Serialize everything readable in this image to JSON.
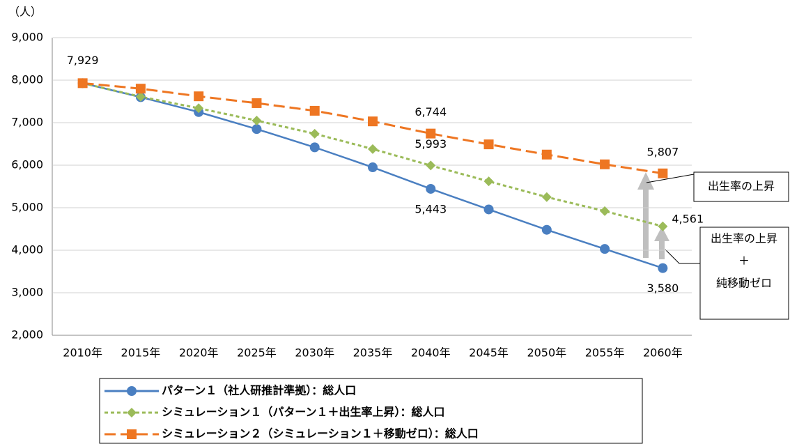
{
  "chart_data": {
    "type": "line",
    "y_unit_label": "（人）",
    "categories": [
      "2010年",
      "2015年",
      "2020年",
      "2025年",
      "2030年",
      "2035年",
      "2040年",
      "2045年",
      "2050年",
      "2055年",
      "2060年"
    ],
    "series": [
      {
        "name": "パターン１（社人研推計準拠）：総人口",
        "color": "#4a7fc1",
        "marker": "circle",
        "dash": "solid",
        "values": [
          7929,
          7600,
          7250,
          6850,
          6420,
          5950,
          5443,
          4960,
          4480,
          4030,
          3580
        ],
        "value_labels": [
          null,
          null,
          null,
          null,
          null,
          null,
          "5,443",
          null,
          null,
          null,
          "3,580"
        ]
      },
      {
        "name": "シミュレーション１（パターン１＋出生率上昇）：総人口",
        "color": "#9bbb59",
        "marker": "diamond",
        "dash": "short",
        "values": [
          7929,
          7610,
          7340,
          7050,
          6740,
          6380,
          5993,
          5620,
          5250,
          4920,
          4561
        ],
        "value_labels": [
          null,
          null,
          null,
          null,
          null,
          null,
          "5,993",
          null,
          null,
          null,
          "4,561"
        ]
      },
      {
        "name": "シミュレーション２（シミュレーション１＋移動ゼロ）：総人口",
        "color": "#ee7622",
        "marker": "square",
        "dash": "long",
        "values": [
          7929,
          7800,
          7620,
          7460,
          7280,
          7030,
          6744,
          6490,
          6250,
          6020,
          5807
        ],
        "value_labels": [
          "7,929",
          null,
          null,
          null,
          null,
          null,
          "6,744",
          null,
          null,
          null,
          "5,807"
        ]
      }
    ],
    "ylim": [
      2000,
      9000
    ],
    "yticks": [
      {
        "value": 2000,
        "label": "2,000"
      },
      {
        "value": 3000,
        "label": "3,000"
      },
      {
        "value": 4000,
        "label": "4,000"
      },
      {
        "value": 5000,
        "label": "5,000"
      },
      {
        "value": 6000,
        "label": "6,000"
      },
      {
        "value": 7000,
        "label": "7,000"
      },
      {
        "value": 8000,
        "label": "8,000"
      },
      {
        "value": 9000,
        "label": "9,000"
      }
    ],
    "grid": true,
    "legend_position": "bottom",
    "annotations": [
      {
        "lines": [
          "出生率の上昇"
        ]
      },
      {
        "lines": [
          "出生率の上昇",
          "＋",
          "純移動ゼロ"
        ]
      }
    ]
  }
}
